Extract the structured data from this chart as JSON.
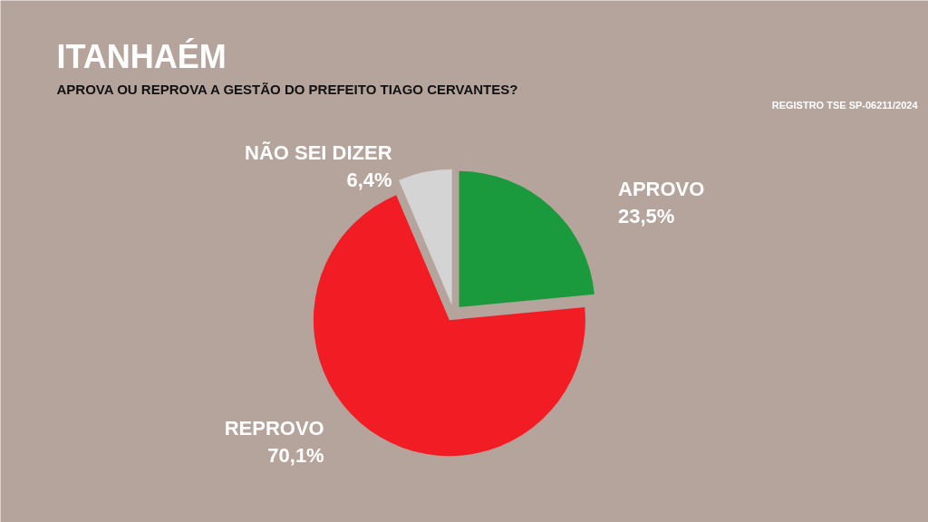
{
  "chart_data": {
    "type": "pie",
    "title": "ITANHAÉM",
    "subtitle": "APROVA OU REPROVA A GESTÃO DO PREFEITO TIAGO CERVANTES?",
    "categories": [
      "APROVO",
      "REPROVO",
      "NÃO SEI DIZER"
    ],
    "values": [
      23.5,
      70.1,
      6.4
    ],
    "colors": [
      "#1a9a3c",
      "#f21c24",
      "#d4d4d4"
    ],
    "value_labels": [
      "23,5%",
      "70,1%",
      "6,4%"
    ],
    "annotations": [
      "REGISTRO TSE SP-06211/2024"
    ]
  }
}
